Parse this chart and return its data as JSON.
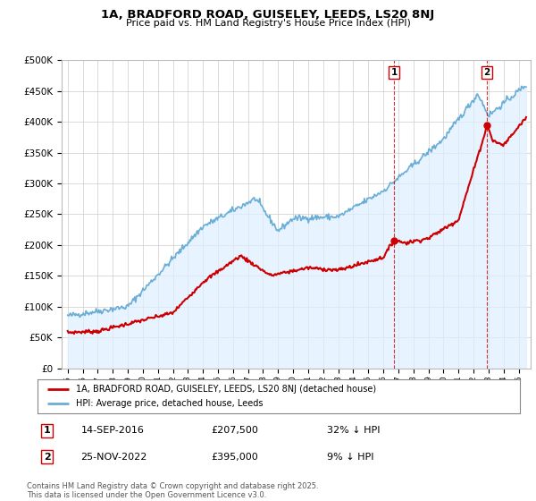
{
  "title1": "1A, BRADFORD ROAD, GUISELEY, LEEDS, LS20 8NJ",
  "title2": "Price paid vs. HM Land Registry's House Price Index (HPI)",
  "ylim": [
    0,
    500000
  ],
  "yticks": [
    0,
    50000,
    100000,
    150000,
    200000,
    250000,
    300000,
    350000,
    400000,
    450000,
    500000
  ],
  "xlim_start": 1994.6,
  "xlim_end": 2025.8,
  "sale1_date": "14-SEP-2016",
  "sale1_price": 207500,
  "sale1_hpi_diff": "32% ↓ HPI",
  "sale1_label": "1",
  "sale1_year": 2016.71,
  "sale2_date": "25-NOV-2022",
  "sale2_price": 395000,
  "sale2_hpi_diff": "9% ↓ HPI",
  "sale2_label": "2",
  "sale2_year": 2022.9,
  "line_color_hpi": "#6aaed6",
  "fill_color_hpi": "#ddeeff",
  "line_color_sale": "#cc0000",
  "legend_sale": "1A, BRADFORD ROAD, GUISELEY, LEEDS, LS20 8NJ (detached house)",
  "legend_hpi": "HPI: Average price, detached house, Leeds",
  "footer": "Contains HM Land Registry data © Crown copyright and database right 2025.\nThis data is licensed under the Open Government Licence v3.0.",
  "background_color": "#ffffff",
  "grid_color": "#cccccc",
  "annotation_box_color": "#cc0000",
  "dashed_line_color": "#cc0000"
}
